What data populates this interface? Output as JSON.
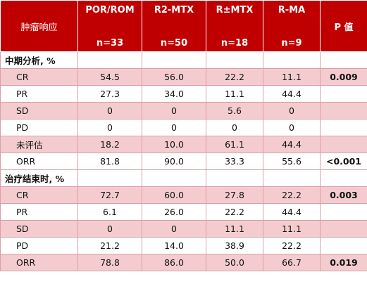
{
  "header": {
    "row_label": "肿瘤响应",
    "p_label": "P 值",
    "groups": [
      {
        "name": "POR/ROM",
        "n": "n=33"
      },
      {
        "name": "R2-MTX",
        "n": "n=50"
      },
      {
        "name": "R±MTX",
        "n": "n=18"
      },
      {
        "name": "R-MA",
        "n": "n=9"
      }
    ]
  },
  "sections": [
    {
      "title": "中期分析, %",
      "rows": [
        {
          "label": "CR",
          "values": [
            "54.5",
            "56.0",
            "22.2",
            "11.1"
          ],
          "p": "0.009"
        },
        {
          "label": "PR",
          "values": [
            "27.3",
            "34.0",
            "11.1",
            "44.4"
          ],
          "p": ""
        },
        {
          "label": "SD",
          "values": [
            "0",
            "0",
            "5.6",
            "0"
          ],
          "p": ""
        },
        {
          "label": "PD",
          "values": [
            "0",
            "0",
            "0",
            "0"
          ],
          "p": ""
        },
        {
          "label": "未评估",
          "values": [
            "18.2",
            "10.0",
            "61.1",
            "44.4"
          ],
          "p": ""
        },
        {
          "label": "ORR",
          "values": [
            "81.8",
            "90.0",
            "33.3",
            "55.6"
          ],
          "p": "<0.001"
        }
      ]
    },
    {
      "title": "治疗结束时, %",
      "rows": [
        {
          "label": "CR",
          "values": [
            "72.7",
            "60.0",
            "27.8",
            "22.2"
          ],
          "p": "0.003"
        },
        {
          "label": "PR",
          "values": [
            "6.1",
            "26.0",
            "22.2",
            "44.4"
          ],
          "p": ""
        },
        {
          "label": "SD",
          "values": [
            "0",
            "0",
            "11.1",
            "11.1"
          ],
          "p": ""
        },
        {
          "label": "PD",
          "values": [
            "21.2",
            "14.0",
            "38.9",
            "22.2"
          ],
          "p": ""
        },
        {
          "label": "ORR",
          "values": [
            "78.8",
            "86.0",
            "50.0",
            "66.7"
          ],
          "p": "0.019"
        }
      ]
    }
  ],
  "colors": {
    "header_bg": "#c00000",
    "pink_row": "#f4cccf",
    "white_row": "#ffffff"
  }
}
